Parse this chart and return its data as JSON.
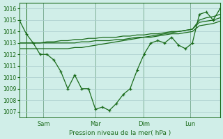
{
  "background_color": "#d0eee8",
  "grid_color": "#aacccc",
  "line_color": "#1a6b1a",
  "title": "Pression niveau de la mer( hPa )",
  "ylim": [
    1006.5,
    1016.5
  ],
  "yticks": [
    1007,
    1008,
    1009,
    1010,
    1011,
    1012,
    1013,
    1014,
    1015,
    1016
  ],
  "day_labels": [
    "Sam",
    "Mar",
    "Dim",
    "Lun"
  ],
  "day_positions": [
    0.12,
    0.38,
    0.62,
    0.85
  ],
  "series1": [
    1015.0,
    1013.8,
    1013.0,
    1012.0,
    1012.0,
    1011.5,
    1010.5,
    1009.0,
    1010.2,
    1009.0,
    1009.0,
    1007.2,
    1007.4,
    1007.1,
    1007.7,
    1008.5,
    1009.0,
    1010.6,
    1012.0,
    1013.0,
    1013.2,
    1013.0,
    1013.5,
    1012.8,
    1012.5,
    1013.0,
    1015.5,
    1015.7,
    1015.0,
    1016.0
  ],
  "series2": [
    1013.0,
    1013.0,
    1013.0,
    1013.0,
    1013.1,
    1013.1,
    1013.2,
    1013.2,
    1013.3,
    1013.3,
    1013.4,
    1013.4,
    1013.5,
    1013.5,
    1013.5,
    1013.6,
    1013.6,
    1013.7,
    1013.7,
    1013.8,
    1013.8,
    1013.9,
    1014.0,
    1014.0,
    1014.1,
    1014.2,
    1015.0,
    1015.2,
    1015.3,
    1015.5
  ],
  "series3": [
    1013.0,
    1013.0,
    1013.0,
    1013.0,
    1013.0,
    1013.0,
    1013.0,
    1013.0,
    1013.0,
    1013.1,
    1013.1,
    1013.2,
    1013.2,
    1013.2,
    1013.3,
    1013.3,
    1013.4,
    1013.5,
    1013.5,
    1013.6,
    1013.7,
    1013.8,
    1013.9,
    1014.0,
    1014.1,
    1014.2,
    1014.8,
    1014.9,
    1015.0,
    1015.2
  ],
  "series4": [
    1012.5,
    1012.5,
    1012.5,
    1012.5,
    1012.5,
    1012.5,
    1012.5,
    1012.5,
    1012.6,
    1012.6,
    1012.7,
    1012.8,
    1012.9,
    1013.0,
    1013.1,
    1013.2,
    1013.3,
    1013.4,
    1013.5,
    1013.5,
    1013.6,
    1013.7,
    1013.8,
    1013.8,
    1013.9,
    1014.0,
    1014.5,
    1014.6,
    1014.7,
    1014.9
  ]
}
